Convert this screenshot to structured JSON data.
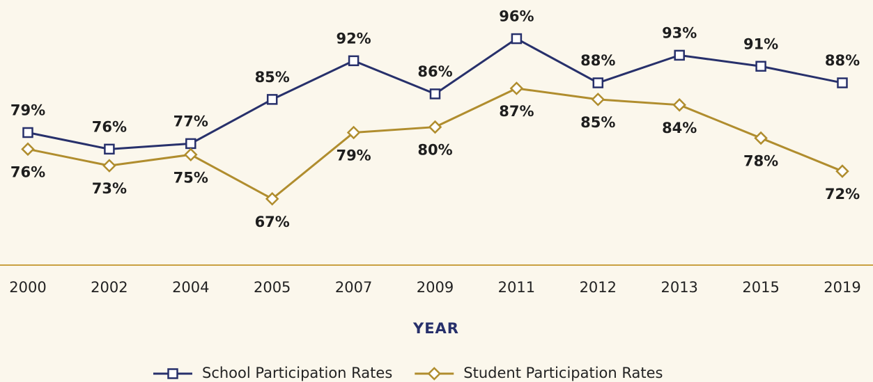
{
  "chart_data": {
    "type": "line",
    "x_label": "YEAR",
    "categories": [
      "2000",
      "2002",
      "2004",
      "2005",
      "2007",
      "2009",
      "2011",
      "2012",
      "2013",
      "2015",
      "2019"
    ],
    "ylim": [
      55,
      103
    ],
    "series": [
      {
        "name": "School Participation Rates",
        "color": "#27306b",
        "marker": "square",
        "values": [
          79,
          76,
          77,
          85,
          92,
          86,
          96,
          88,
          93,
          91,
          88
        ],
        "value_labels": [
          "79%",
          "76%",
          "77%",
          "85%",
          "92%",
          "86%",
          "96%",
          "88%",
          "93%",
          "91%",
          "88%"
        ]
      },
      {
        "name": "Student Participation Rates",
        "color": "#b08d2e",
        "marker": "diamond",
        "values": [
          76,
          73,
          75,
          67,
          79,
          80,
          87,
          85,
          84,
          78,
          72
        ],
        "value_labels": [
          "76%",
          "73%",
          "75%",
          "67%",
          "79%",
          "80%",
          "87%",
          "85%",
          "84%",
          "78%",
          "72%"
        ]
      }
    ],
    "legend": "bottom"
  }
}
